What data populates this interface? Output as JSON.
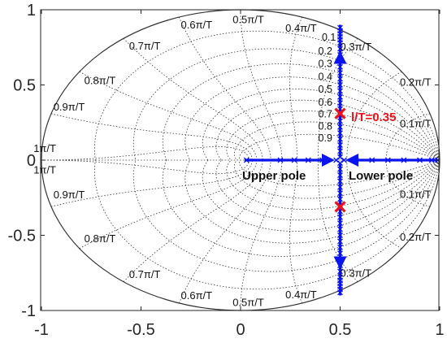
{
  "chart_data": {
    "type": "scatter",
    "title": "",
    "xlabel": "",
    "ylabel": "",
    "xlim": [
      -1,
      1
    ],
    "ylim": [
      -1,
      1
    ],
    "x_ticks": [
      "-1",
      "-0.5",
      "0",
      "0.5",
      "1"
    ],
    "y_ticks": [
      "1",
      "0.5",
      "0",
      "-0.5",
      "-1"
    ],
    "grid": "z-plane damping and natural-frequency contours (dotted)",
    "damping_labels": [
      "0.1",
      "0.2",
      "0.3",
      "0.4",
      "0.5",
      "0.6",
      "0.7",
      "0.8",
      "0.9"
    ],
    "damping_values": [
      0.1,
      0.2,
      0.3,
      0.4,
      0.5,
      0.6,
      0.7,
      0.8,
      0.9
    ],
    "wn_labels": [
      "0.1π/T",
      "0.2π/T",
      "0.3π/T",
      "0.4π/T",
      "0.5π/T",
      "0.6π/T",
      "0.7π/T",
      "0.8π/T",
      "0.9π/T",
      "1π/T"
    ],
    "wn_values": [
      0.1,
      0.2,
      0.3,
      0.4,
      0.5,
      0.6,
      0.7,
      0.8,
      0.9,
      1.0
    ],
    "root_locus": {
      "color": "#0a14f0",
      "real_axis_x": [
        0.03,
        0.2,
        0.27,
        0.34,
        0.41,
        0.48,
        0.52,
        0.58,
        0.66,
        0.74,
        0.82,
        0.9,
        0.96,
        0.99
      ],
      "vertical_y": [
        0.02,
        0.06,
        0.1,
        0.14,
        0.18,
        0.22,
        0.26,
        0.3,
        0.34,
        0.38,
        0.42,
        0.46,
        0.5,
        0.54,
        0.58,
        0.62,
        0.66,
        0.7,
        0.74,
        0.78,
        0.8,
        0.82,
        0.84,
        0.86,
        0.88
      ]
    },
    "highlighted_poles": {
      "color": "#e8141b",
      "points": [
        {
          "x": 0.5,
          "y": 0.31
        },
        {
          "x": 0.5,
          "y": -0.31
        }
      ]
    },
    "annotations": {
      "gain_label": "l/T=0.35",
      "upper_pole": "Upper pole",
      "lower_pole": "Lower pole"
    }
  }
}
